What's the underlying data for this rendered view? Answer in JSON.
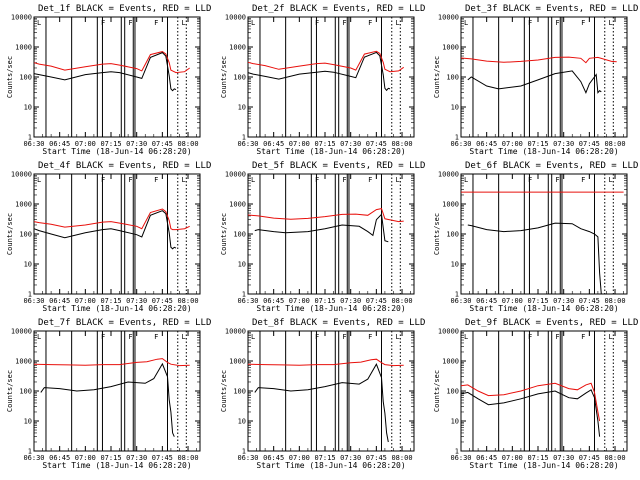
{
  "figure": {
    "colors": {
      "events": "#000000",
      "lld": "#e8100c",
      "axes": "#000000"
    },
    "corner_marks": [
      "L",
      "F",
      "F",
      "F",
      "L"
    ]
  },
  "chart_data": [
    {
      "type": "line",
      "title": "Det_1f BLACK = Events, RED = LLD",
      "xlabel": "Start Time (18-Jun-14 06:28:20)",
      "ylabel": "Counts/sec",
      "x_ticks": [
        "06:30",
        "06:45",
        "07:00",
        "07:15",
        "07:30",
        "07:45",
        "08:00"
      ],
      "y_ticks": [
        "1",
        "10",
        "100",
        "1000",
        "10000"
      ],
      "y_scale": "log",
      "ylim": [
        1,
        10000
      ],
      "event_lines": [
        "06:37",
        "06:52",
        "07:07",
        "07:10",
        "07:21",
        "07:23",
        "07:28",
        "07:29",
        "07:48"
      ],
      "dotted_lines": [
        "07:54",
        "07:59"
      ],
      "series": [
        {
          "name": "RED = LLD",
          "color": "#e8100c",
          "x": [
            "06:30",
            "06:33",
            "06:40",
            "06:48",
            "07:00",
            "07:10",
            "07:15",
            "07:20",
            "07:30",
            "07:33",
            "07:38",
            "07:45",
            "07:47",
            "07:49",
            "07:50",
            "07:51",
            "07:53",
            "07:58",
            "08:01"
          ],
          "y": [
            300,
            270,
            230,
            170,
            220,
            270,
            280,
            250,
            190,
            160,
            560,
            700,
            590,
            300,
            170,
            160,
            140,
            150,
            200
          ]
        },
        {
          "name": "BLACK = Events",
          "color": "#000000",
          "x": [
            "06:30",
            "06:33",
            "06:40",
            "06:48",
            "07:00",
            "07:10",
            "07:15",
            "07:20",
            "07:30",
            "07:33",
            "07:38",
            "07:45",
            "07:47",
            "07:49",
            "07:50",
            "07:51",
            "07:52",
            "07:53"
          ],
          "y": [
            130,
            120,
            100,
            80,
            120,
            140,
            150,
            140,
            100,
            90,
            450,
            650,
            500,
            110,
            40,
            35,
            40,
            38
          ]
        }
      ]
    },
    {
      "type": "line",
      "title": "Det_2f BLACK = Events, RED = LLD",
      "xlabel": "Start Time (18-Jun-14 06:28:20)",
      "ylabel": "Counts/sec",
      "x_ticks": [
        "06:30",
        "06:45",
        "07:00",
        "07:15",
        "07:30",
        "07:45",
        "08:00"
      ],
      "y_ticks": [
        "1",
        "10",
        "100",
        "1000",
        "10000"
      ],
      "y_scale": "log",
      "ylim": [
        1,
        10000
      ],
      "event_lines": [
        "06:37",
        "06:52",
        "07:07",
        "07:10",
        "07:21",
        "07:23",
        "07:28",
        "07:29",
        "07:48"
      ],
      "dotted_lines": [
        "07:54",
        "07:59"
      ],
      "series": [
        {
          "name": "RED = LLD",
          "color": "#e8100c",
          "x": [
            "06:30",
            "06:33",
            "06:40",
            "06:48",
            "07:00",
            "07:10",
            "07:15",
            "07:20",
            "07:30",
            "07:33",
            "07:38",
            "07:45",
            "07:47",
            "07:49",
            "07:50",
            "07:51",
            "07:53",
            "07:58",
            "08:01"
          ],
          "y": [
            310,
            280,
            240,
            180,
            230,
            280,
            290,
            260,
            200,
            170,
            580,
            720,
            610,
            310,
            180,
            170,
            150,
            160,
            210
          ]
        },
        {
          "name": "BLACK = Events",
          "color": "#000000",
          "x": [
            "06:30",
            "06:33",
            "06:40",
            "06:48",
            "07:00",
            "07:10",
            "07:15",
            "07:20",
            "07:30",
            "07:33",
            "07:38",
            "07:45",
            "07:47",
            "07:49",
            "07:50",
            "07:51",
            "07:52",
            "07:53"
          ],
          "y": [
            140,
            125,
            105,
            85,
            125,
            145,
            155,
            145,
            105,
            95,
            460,
            660,
            510,
            120,
            42,
            36,
            42,
            40
          ]
        }
      ]
    },
    {
      "type": "line",
      "title": "Det_3f BLACK = Events, RED = LLD",
      "xlabel": "Start Time (18-Jun-14 06:28:20)",
      "ylabel": "Counts/sec",
      "x_ticks": [
        "06:30",
        "06:45",
        "07:00",
        "07:15",
        "07:30",
        "07:45",
        "08:00"
      ],
      "y_ticks": [
        "1",
        "10",
        "100",
        "1000",
        "10000"
      ],
      "y_scale": "log",
      "ylim": [
        1,
        10000
      ],
      "event_lines": [
        "06:37",
        "06:52",
        "07:07",
        "07:10",
        "07:21",
        "07:23",
        "07:28",
        "07:29",
        "07:48"
      ],
      "dotted_lines": [
        "07:54",
        "07:59"
      ],
      "series": [
        {
          "name": "RED = LLD",
          "color": "#e8100c",
          "x": [
            "06:30",
            "06:36",
            "06:45",
            "06:55",
            "07:05",
            "07:15",
            "07:25",
            "07:33",
            "07:40",
            "07:43",
            "07:45",
            "07:50",
            "07:58",
            "08:01"
          ],
          "y": [
            430,
            400,
            340,
            310,
            330,
            370,
            450,
            460,
            420,
            300,
            420,
            450,
            330,
            320
          ]
        },
        {
          "name": "BLACK = Events",
          "color": "#000000",
          "x": [
            "06:34",
            "06:36",
            "06:45",
            "06:52",
            "07:05",
            "07:15",
            "07:25",
            "07:35",
            "07:40",
            "07:43",
            "07:45",
            "07:49",
            "07:50",
            "07:51",
            "07:52"
          ],
          "y": [
            80,
            100,
            50,
            40,
            50,
            80,
            130,
            160,
            70,
            30,
            60,
            120,
            30,
            35,
            32
          ]
        }
      ]
    },
    {
      "type": "line",
      "title": "Det_4f BLACK = Events, RED = LLD",
      "xlabel": "Start Time (18-Jun-14 06:28:20)",
      "ylabel": "Counts/sec",
      "x_ticks": [
        "06:30",
        "06:45",
        "07:00",
        "07:15",
        "07:30",
        "07:45",
        "08:00"
      ],
      "y_ticks": [
        "1",
        "10",
        "100",
        "1000",
        "10000"
      ],
      "y_scale": "log",
      "ylim": [
        1,
        10000
      ],
      "event_lines": [
        "06:37",
        "06:52",
        "07:07",
        "07:10",
        "07:21",
        "07:23",
        "07:28",
        "07:29",
        "07:48"
      ],
      "dotted_lines": [
        "07:54",
        "07:59"
      ],
      "series": [
        {
          "name": "RED = LLD",
          "color": "#e8100c",
          "x": [
            "06:30",
            "06:33",
            "06:40",
            "06:48",
            "07:00",
            "07:10",
            "07:15",
            "07:20",
            "07:30",
            "07:33",
            "07:38",
            "07:45",
            "07:47",
            "07:49",
            "07:50",
            "07:51",
            "07:53",
            "07:58",
            "08:01"
          ],
          "y": [
            260,
            240,
            210,
            170,
            200,
            250,
            260,
            230,
            180,
            150,
            520,
            680,
            560,
            280,
            150,
            140,
            140,
            150,
            180
          ]
        },
        {
          "name": "BLACK = Events",
          "color": "#000000",
          "x": [
            "06:30",
            "06:33",
            "06:40",
            "06:48",
            "07:00",
            "07:10",
            "07:15",
            "07:20",
            "07:30",
            "07:33",
            "07:38",
            "07:45",
            "07:47",
            "07:49",
            "07:50",
            "07:51",
            "07:52",
            "07:53"
          ],
          "y": [
            150,
            130,
            100,
            75,
            110,
            140,
            150,
            130,
            95,
            80,
            420,
            600,
            480,
            110,
            36,
            32,
            36,
            34
          ]
        }
      ]
    },
    {
      "type": "line",
      "title": "Det_5f BLACK = Events, RED = LLD",
      "xlabel": "Start Time (18-Jun-14 06:28:20)",
      "ylabel": "Counts/sec",
      "x_ticks": [
        "06:30",
        "06:45",
        "07:00",
        "07:15",
        "07:30",
        "07:45",
        "08:00"
      ],
      "y_ticks": [
        "1",
        "10",
        "100",
        "1000",
        "10000"
      ],
      "y_scale": "log",
      "ylim": [
        1,
        10000
      ],
      "event_lines": [
        "06:37",
        "06:52",
        "07:07",
        "07:10",
        "07:21",
        "07:23",
        "07:28",
        "07:29",
        "07:48"
      ],
      "dotted_lines": [
        "07:54",
        "07:59"
      ],
      "series": [
        {
          "name": "RED = LLD",
          "color": "#e8100c",
          "x": [
            "06:30",
            "06:36",
            "06:45",
            "06:55",
            "07:05",
            "07:15",
            "07:25",
            "07:33",
            "07:40",
            "07:45",
            "07:48",
            "07:50",
            "07:58",
            "08:01"
          ],
          "y": [
            430,
            400,
            340,
            310,
            330,
            380,
            450,
            460,
            420,
            650,
            700,
            320,
            260,
            270
          ]
        },
        {
          "name": "BLACK = Events",
          "color": "#000000",
          "x": [
            "06:34",
            "06:36",
            "06:45",
            "06:52",
            "07:05",
            "07:15",
            "07:25",
            "07:35",
            "07:40",
            "07:43",
            "07:45",
            "07:48",
            "07:50",
            "07:52"
          ],
          "y": [
            130,
            140,
            120,
            110,
            120,
            150,
            200,
            180,
            120,
            90,
            300,
            450,
            60,
            55
          ]
        }
      ]
    },
    {
      "type": "line",
      "title": "Det_6f BLACK = Events, RED = LLD",
      "xlabel": "Start Time (18-Jun-14 06:28:20)",
      "ylabel": "Counts/sec",
      "x_ticks": [
        "06:30",
        "06:45",
        "07:00",
        "07:15",
        "07:30",
        "07:45",
        "08:00"
      ],
      "y_ticks": [
        "1",
        "10",
        "100",
        "1000",
        "10000"
      ],
      "y_scale": "log",
      "ylim": [
        1,
        10000
      ],
      "event_lines": [
        "06:37",
        "06:52",
        "07:07",
        "07:10",
        "07:21",
        "07:23",
        "07:28",
        "07:29",
        "07:48"
      ],
      "dotted_lines": [
        "07:54",
        "07:59"
      ],
      "series": [
        {
          "name": "RED = LLD",
          "color": "#e8100c",
          "x": [
            "06:30",
            "08:05"
          ],
          "y": [
            2500,
            2500
          ]
        },
        {
          "name": "BLACK = Events",
          "color": "#000000",
          "x": [
            "06:34",
            "06:36",
            "06:45",
            "06:55",
            "07:05",
            "07:15",
            "07:25",
            "07:35",
            "07:40",
            "07:45",
            "07:48",
            "07:50",
            "07:51",
            "07:52"
          ],
          "y": [
            200,
            190,
            140,
            120,
            130,
            160,
            230,
            220,
            150,
            120,
            100,
            80,
            5,
            1
          ]
        }
      ]
    },
    {
      "type": "line",
      "title": "Det_7f BLACK = Events, RED = LLD",
      "xlabel": "Start Time (18-Jun-14 06:28:20)",
      "ylabel": "Counts/sec",
      "x_ticks": [
        "06:30",
        "06:45",
        "07:00",
        "07:15",
        "07:30",
        "07:45",
        "08:00"
      ],
      "y_ticks": [
        "1",
        "10",
        "100",
        "1000",
        "10000"
      ],
      "y_scale": "log",
      "ylim": [
        1,
        10000
      ],
      "event_lines": [
        "06:37",
        "06:52",
        "07:07",
        "07:10",
        "07:21",
        "07:23",
        "07:28",
        "07:29",
        "07:48"
      ],
      "dotted_lines": [
        "07:54",
        "07:59"
      ],
      "series": [
        {
          "name": "RED = LLD",
          "color": "#e8100c",
          "x": [
            "06:30",
            "06:40",
            "06:50",
            "07:00",
            "07:10",
            "07:20",
            "07:30",
            "07:36",
            "07:42",
            "07:45",
            "07:48",
            "07:50",
            "07:55",
            "08:01"
          ],
          "y": [
            780,
            760,
            740,
            720,
            760,
            760,
            900,
            950,
            1150,
            1200,
            900,
            780,
            700,
            720
          ]
        },
        {
          "name": "BLACK = Events",
          "color": "#000000",
          "x": [
            "06:34",
            "06:36",
            "06:45",
            "06:55",
            "07:05",
            "07:15",
            "07:25",
            "07:35",
            "07:40",
            "07:45",
            "07:48",
            "07:49",
            "07:50",
            "07:51",
            "07:52"
          ],
          "y": [
            90,
            130,
            120,
            100,
            110,
            140,
            200,
            180,
            260,
            800,
            300,
            50,
            20,
            4,
            3
          ]
        }
      ]
    },
    {
      "type": "line",
      "title": "Det_8f BLACK = Events, RED = LLD",
      "xlabel": "Start Time (18-Jun-14 06:28:20)",
      "ylabel": "Counts/sec",
      "x_ticks": [
        "06:30",
        "06:45",
        "07:00",
        "07:15",
        "07:30",
        "07:45",
        "08:00"
      ],
      "y_ticks": [
        "1",
        "10",
        "100",
        "1000",
        "10000"
      ],
      "y_scale": "log",
      "ylim": [
        1,
        10000
      ],
      "event_lines": [
        "06:37",
        "06:52",
        "07:07",
        "07:10",
        "07:21",
        "07:23",
        "07:28",
        "07:29",
        "07:48"
      ],
      "dotted_lines": [
        "07:54",
        "07:59"
      ],
      "series": [
        {
          "name": "RED = LLD",
          "color": "#e8100c",
          "x": [
            "06:30",
            "06:40",
            "06:50",
            "07:00",
            "07:10",
            "07:20",
            "07:30",
            "07:36",
            "07:42",
            "07:45",
            "07:48",
            "07:50",
            "07:55",
            "08:01"
          ],
          "y": [
            780,
            760,
            740,
            720,
            760,
            760,
            880,
            920,
            1100,
            1150,
            880,
            760,
            700,
            720
          ]
        },
        {
          "name": "BLACK = Events",
          "color": "#000000",
          "x": [
            "06:34",
            "06:36",
            "06:45",
            "06:55",
            "07:05",
            "07:15",
            "07:25",
            "07:35",
            "07:40",
            "07:45",
            "07:48",
            "07:49",
            "07:50",
            "07:51",
            "07:52"
          ],
          "y": [
            90,
            130,
            120,
            100,
            110,
            140,
            190,
            170,
            250,
            780,
            280,
            45,
            18,
            4,
            2
          ]
        }
      ]
    },
    {
      "type": "line",
      "title": "Det_9f BLACK = Events, RED = LLD",
      "xlabel": "Start Time (18-Jun-14 06:28:20)",
      "ylabel": "Counts/sec",
      "x_ticks": [
        "06:30",
        "06:45",
        "07:00",
        "07:15",
        "07:30",
        "07:45",
        "08:00"
      ],
      "y_ticks": [
        "1",
        "10",
        "100",
        "1000",
        "10000"
      ],
      "y_scale": "log",
      "ylim": [
        1,
        10000
      ],
      "event_lines": [
        "06:37",
        "06:52",
        "07:07",
        "07:10",
        "07:21",
        "07:23",
        "07:28",
        "07:29",
        "07:48"
      ],
      "dotted_lines": [
        "07:54",
        "07:59"
      ],
      "series": [
        {
          "name": "RED = LLD",
          "color": "#e8100c",
          "x": [
            "06:30",
            "06:34",
            "06:40",
            "06:46",
            "06:55",
            "07:05",
            "07:15",
            "07:25",
            "07:33",
            "07:38",
            "07:43",
            "07:46",
            "07:48",
            "07:50",
            "07:51"
          ],
          "y": [
            150,
            160,
            100,
            70,
            75,
            100,
            150,
            180,
            120,
            110,
            160,
            180,
            90,
            20,
            10
          ]
        },
        {
          "name": "BLACK = Events",
          "color": "#000000",
          "x": [
            "06:30",
            "06:34",
            "06:40",
            "06:46",
            "06:55",
            "07:05",
            "07:15",
            "07:25",
            "07:33",
            "07:38",
            "07:43",
            "07:46",
            "07:48",
            "07:50",
            "07:51"
          ],
          "y": [
            80,
            90,
            55,
            35,
            40,
            55,
            80,
            100,
            60,
            55,
            85,
            110,
            60,
            10,
            3
          ]
        }
      ]
    }
  ]
}
